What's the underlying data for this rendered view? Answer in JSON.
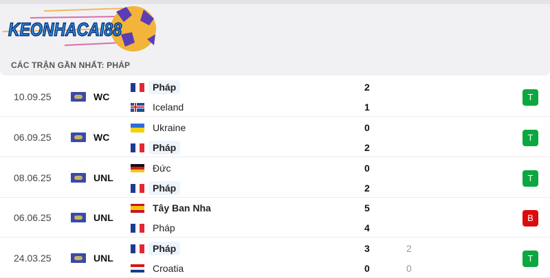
{
  "logo_text": "KEONHACAI88",
  "section_title": "CÁC TRẬN GẦN NHẤT: PHÁP",
  "colors": {
    "win": "#0aa83f",
    "loss": "#dd0b0b",
    "highlight": "#eef4fb"
  },
  "matches": [
    {
      "date": "10.09.25",
      "competition": "WC",
      "home": {
        "name": "Pháp",
        "flag": "france",
        "score": "2"
      },
      "away": {
        "name": "Iceland",
        "flag": "iceland",
        "score": "1"
      },
      "winner": "home",
      "highlight": "home",
      "result": "T"
    },
    {
      "date": "06.09.25",
      "competition": "WC",
      "home": {
        "name": "Ukraine",
        "flag": "ukraine",
        "score": "0"
      },
      "away": {
        "name": "Pháp",
        "flag": "france",
        "score": "2"
      },
      "winner": "away",
      "highlight": "away",
      "result": "T"
    },
    {
      "date": "08.06.25",
      "competition": "UNL",
      "home": {
        "name": "Đức",
        "flag": "germany",
        "score": "0"
      },
      "away": {
        "name": "Pháp",
        "flag": "france",
        "score": "2"
      },
      "winner": "away",
      "highlight": "away",
      "result": "T"
    },
    {
      "date": "06.06.25",
      "competition": "UNL",
      "home": {
        "name": "Tây Ban Nha",
        "flag": "spain",
        "score": "5"
      },
      "away": {
        "name": "Pháp",
        "flag": "france",
        "score": "4"
      },
      "winner": "home",
      "highlight": "",
      "result": "B"
    },
    {
      "date": "24.03.25",
      "competition": "UNL",
      "home": {
        "name": "Pháp",
        "flag": "france",
        "score": "3",
        "penalty": "2"
      },
      "away": {
        "name": "Croatia",
        "flag": "croatia",
        "score": "0",
        "penalty": "0"
      },
      "winner": "home",
      "highlight": "home",
      "result": "T"
    }
  ]
}
